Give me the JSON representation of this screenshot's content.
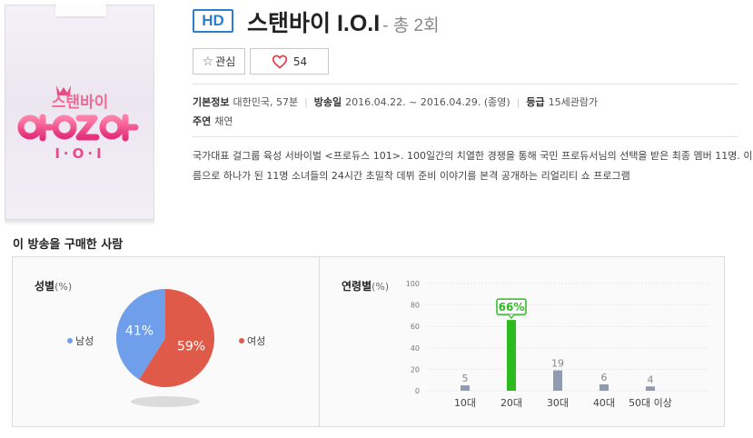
{
  "program": {
    "badge": "HD",
    "title": "스탠바이 I.O.I",
    "episodes": "- 총 2회",
    "poster_logo": [
      "스탠바이",
      "I·O·I"
    ]
  },
  "buttons": {
    "favorite_label": "관심",
    "like_count": "54"
  },
  "info": {
    "basic_label": "기본정보",
    "basic_value": "대한민국, 57분",
    "air_label": "방송일",
    "air_value": "2016.04.22. ~ 2016.04.29. (종영)",
    "rating_label": "등급",
    "rating_value": "15세관람가",
    "cast_label": "주연",
    "cast_value": "채연"
  },
  "description": [
    "국가대표 걸그룹 육성 서바이벌 <프로듀스 101>. 100일간의 치열한 경쟁을 통해 국민 프로듀서님의 선택을 받은 최종 멤버 11명. 이",
    "름으로 하나가 된 11명 소녀들의 24시간 초밀착 데뷔 준비 이야기를 본격 공개하는 리얼리티 쇼 프로그램"
  ],
  "stats": {
    "section_title": "이 방송을 구매한 사람",
    "gender": {
      "title": "성별",
      "unit": "(%)",
      "male_label": "남성",
      "female_label": "여성",
      "male_color": "#6f9fea",
      "female_color": "#e05a4a"
    },
    "age": {
      "title": "연령별",
      "unit": "(%)",
      "bar_color": "#8e9bb0",
      "highlight_color": "#2bbb1f"
    }
  },
  "chart_data": [
    {
      "type": "pie",
      "title": "성별(%)",
      "labels": [
        "남성",
        "여성"
      ],
      "values": [
        41,
        59
      ],
      "value_labels": [
        "41%",
        "59%"
      ]
    },
    {
      "type": "bar",
      "title": "연령별(%)",
      "categories": [
        "10대",
        "20대",
        "30대",
        "40대",
        "50대 이상"
      ],
      "values": [
        5,
        66,
        19,
        6,
        4
      ],
      "value_labels": [
        "5",
        "66%",
        "19",
        "6",
        "4"
      ],
      "highlight_index": 1,
      "ylim": [
        0,
        100
      ],
      "yticks": [
        "0",
        "20",
        "40",
        "60",
        "80",
        "100"
      ],
      "grid": true
    }
  ]
}
